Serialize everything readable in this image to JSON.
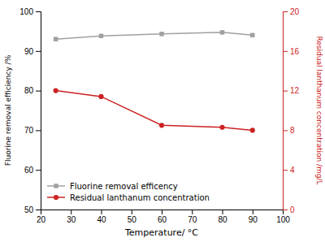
{
  "chart_data": {
    "type": "line",
    "xlabel": "Temperature/ °C",
    "ylabel": "Fluorine removal efficiency /%",
    "y2label": "Residual lanthanum concentration /mg/L",
    "x": [
      25,
      40,
      60,
      80,
      90
    ],
    "series": [
      {
        "name": "Fluorine removal efficency",
        "color": "#a0a0a0",
        "marker": "square",
        "values": [
          93.0,
          93.8,
          94.3,
          94.7,
          94.0
        ]
      },
      {
        "name": "Residual lanthanum concentration",
        "color": "#cc2222",
        "marker": "circle",
        "axis": "y2",
        "values": [
          12.0,
          11.4,
          8.5,
          8.3,
          8.0
        ]
      }
    ],
    "xlim": [
      20,
      100
    ],
    "xticks": [
      20,
      30,
      40,
      50,
      60,
      70,
      80,
      90,
      100
    ],
    "ylim": [
      50,
      100
    ],
    "yticks": [
      50,
      60,
      70,
      80,
      90,
      100
    ],
    "y2lim": [
      0,
      20
    ],
    "y2ticks": [
      0,
      4,
      8,
      12,
      16,
      20
    ],
    "legend": "lower left"
  }
}
